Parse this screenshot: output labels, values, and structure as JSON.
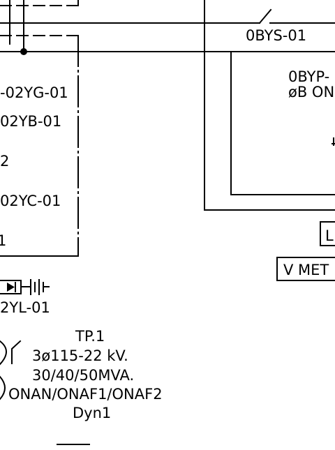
{
  "labels": {
    "ybys": "0BYS-01",
    "ybyp_line1": "0BYP-",
    "ybyp_line2": "øB  ON",
    "yg": "-02YG-01",
    "yb": "02YB-01",
    "num2": "2",
    "yc": "02YC-01",
    "num1": "1",
    "yl": "2YL-01",
    "l_box": "L",
    "v_meter": "V  MET",
    "tp": "TP.1",
    "rating_voltage": "3ø115-22  kV.",
    "rating_power": "30/40/50MVA.",
    "cooling": "ONAN/ONAF1/ONAF2",
    "vector_group": "Dyn1"
  }
}
